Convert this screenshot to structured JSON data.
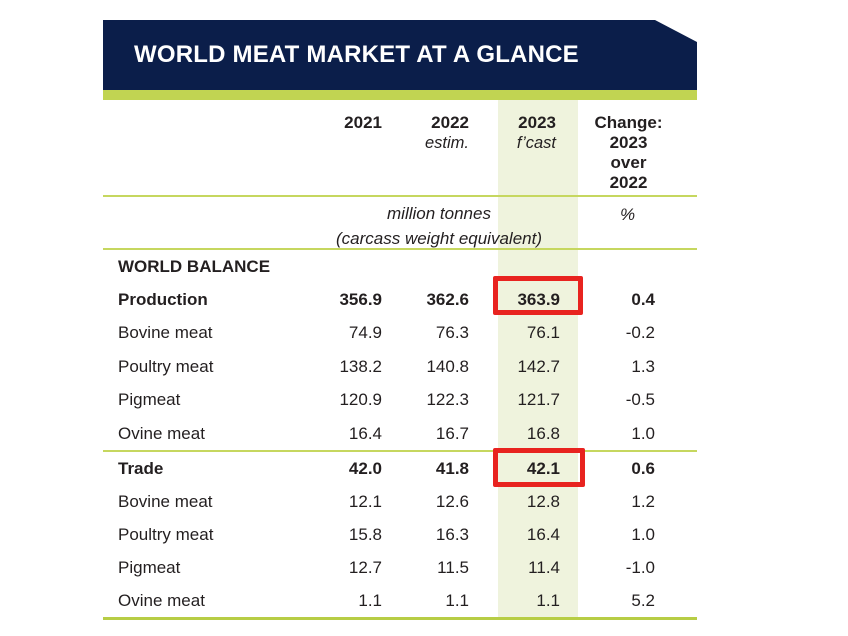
{
  "banner": {
    "title": "WORLD MEAT MARKET AT A GLANCE"
  },
  "colors": {
    "navy": "#0b1e4a",
    "lime_accent": "#c1d452",
    "separator_green": "#c6d75f",
    "forecast_highlight": "#eff3dd",
    "red_box": "#e8231f",
    "text": "#231f20"
  },
  "header": {
    "y2021": "2021",
    "y2022": "2022",
    "sub2022": "estim.",
    "y2023": "2023",
    "sub2023": "f’cast",
    "change_lines": [
      "Change:",
      "2023",
      "over",
      "2022"
    ]
  },
  "units": {
    "line1": "million tonnes",
    "line2": "(carcass weight equivalent)",
    "percent": "%"
  },
  "table": {
    "rows": [
      {
        "label": "WORLD BALANCE",
        "values": [
          "",
          "",
          "",
          ""
        ]
      },
      {
        "label": "Production",
        "values": [
          "356.9",
          "362.6",
          "363.9",
          "0.4"
        ]
      },
      {
        "label": "Bovine meat",
        "values": [
          "74.9",
          "76.3",
          "76.1",
          "-0.2"
        ]
      },
      {
        "label": "Poultry meat",
        "values": [
          "138.2",
          "140.8",
          "142.7",
          "1.3"
        ]
      },
      {
        "label": "Pigmeat",
        "values": [
          "120.9",
          "122.3",
          "121.7",
          "-0.5"
        ]
      },
      {
        "label": "Ovine meat",
        "values": [
          "16.4",
          "16.7",
          "16.8",
          "1.0"
        ]
      },
      {
        "label": "Trade",
        "values": [
          "42.0",
          "41.8",
          "42.1",
          "0.6"
        ]
      },
      {
        "label": "Bovine meat",
        "values": [
          "12.1",
          "12.6",
          "12.8",
          "1.2"
        ]
      },
      {
        "label": "Poultry meat",
        "values": [
          "15.8",
          "16.3",
          "16.4",
          "1.0"
        ]
      },
      {
        "label": "Pigmeat",
        "values": [
          "12.7",
          "11.5",
          "11.4",
          "-1.0"
        ]
      },
      {
        "label": "Ovine meat",
        "values": [
          "1.1",
          "1.1",
          "1.1",
          "5.2"
        ]
      }
    ]
  }
}
